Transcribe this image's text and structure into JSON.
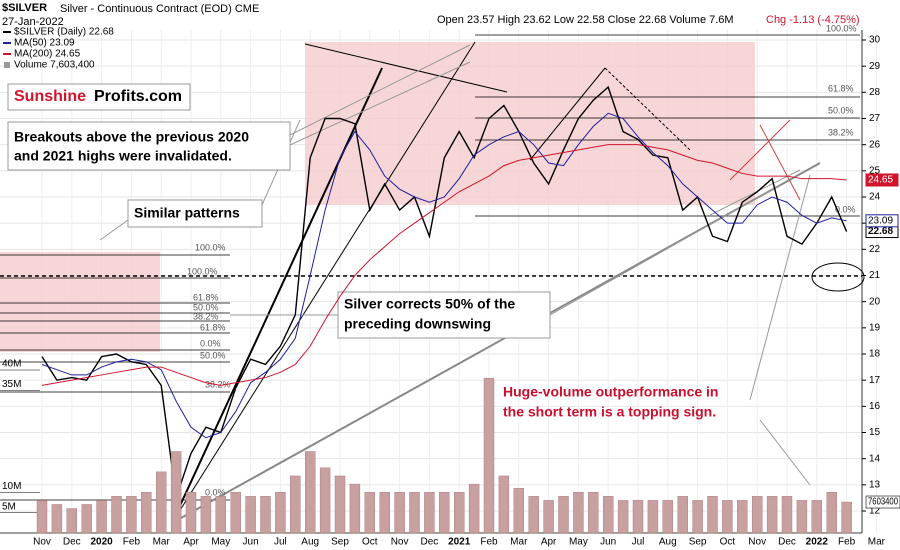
{
  "chart_data": {
    "type": "line",
    "title": "$SILVER",
    "subtitle": "Silver - Continuous Contract (EOD) CME",
    "date": "27-Jan-2022",
    "quote": "Open 23.57 High 23.62 Low 22.58 Close 22.68 Volume 7.6M",
    "change": "Chg -1.13 (-4.75%)",
    "categories": [
      "Nov",
      null,
      "Dec",
      null,
      "2020",
      null,
      "Feb",
      null,
      "Mar",
      null,
      "Apr",
      null,
      "May",
      null,
      "Jun",
      null,
      "Jul",
      null,
      "Aug",
      null,
      "Sep",
      null,
      "Oct",
      null,
      "Nov",
      null,
      "Dec",
      null,
      "2021",
      null,
      "Feb",
      null,
      "Mar",
      null,
      "Apr",
      null,
      "May",
      null,
      "Jun",
      null,
      "Jul",
      null,
      "Aug",
      null,
      "Sep",
      null,
      "Oct",
      null,
      "Nov",
      null,
      "Dec",
      null,
      "2022",
      null,
      "Feb",
      null,
      "Mar"
    ],
    "series": [
      {
        "name": "$SILVER (Daily) 22.68",
        "color": "#000000",
        "values": [
          17.9,
          17.0,
          17.1,
          17.0,
          17.9,
          18.0,
          17.7,
          17.6,
          16.8,
          12.5,
          14.2,
          15.2,
          15.0,
          16.7,
          17.8,
          17.6,
          18.3,
          19.5,
          25.5,
          27.0,
          27.0,
          26.8,
          23.5,
          24.5,
          23.5,
          24.0,
          22.5,
          25.5,
          26.5,
          25.5,
          27.0,
          27.5,
          26.5,
          25.3,
          24.5,
          25.8,
          27.0,
          27.7,
          28.2,
          26.5,
          26.2,
          25.6,
          25.5,
          23.5,
          24.0,
          22.5,
          22.3,
          23.8,
          24.2,
          24.7,
          22.5,
          22.2,
          23.0,
          24.0,
          22.68,
          null,
          null
        ]
      },
      {
        "name": "MA(50) 23.09",
        "color": "#1f1f9f",
        "values": [
          17.6,
          17.4,
          17.2,
          17.2,
          17.5,
          17.7,
          17.8,
          17.7,
          17.4,
          16.2,
          15.2,
          14.8,
          15.0,
          15.8,
          16.9,
          17.3,
          17.8,
          18.6,
          21.0,
          23.5,
          25.5,
          26.5,
          25.8,
          24.8,
          24.3,
          24.0,
          23.8,
          24.0,
          24.7,
          25.6,
          26.0,
          26.3,
          26.5,
          26.0,
          25.3,
          25.2,
          26.0,
          26.7,
          27.2,
          27.0,
          26.3,
          25.7,
          25.2,
          24.5,
          24.0,
          23.5,
          23.0,
          23.0,
          23.7,
          24.0,
          23.8,
          23.3,
          23.0,
          23.2,
          23.09,
          null,
          null
        ]
      },
      {
        "name": "MA(200) 24.65",
        "color": "#d0142c",
        "values": [
          16.8,
          16.9,
          17.0,
          17.1,
          17.2,
          17.3,
          17.4,
          17.5,
          17.5,
          17.3,
          17.1,
          16.9,
          16.8,
          16.9,
          17.0,
          17.1,
          17.3,
          17.6,
          18.3,
          19.3,
          20.2,
          21.0,
          21.6,
          22.1,
          22.6,
          23.0,
          23.4,
          23.8,
          24.2,
          24.5,
          24.8,
          25.2,
          25.4,
          25.5,
          25.6,
          25.7,
          25.8,
          25.9,
          26.0,
          26.0,
          26.0,
          25.9,
          25.8,
          25.6,
          25.4,
          25.3,
          25.1,
          24.9,
          24.8,
          24.8,
          24.8,
          24.7,
          24.7,
          24.7,
          24.65,
          null,
          null
        ]
      },
      {
        "name": "Volume 7,603,400",
        "color": "#c9a0a0",
        "type": "bar",
        "axis": "y2",
        "values": [
          8000000,
          7000000,
          6000000,
          7000000,
          8000000,
          9000000,
          9000000,
          10000000,
          15000000,
          20000000,
          10000000,
          9000000,
          9000000,
          10000000,
          9000000,
          9000000,
          10000000,
          14000000,
          20000000,
          16000000,
          14000000,
          12000000,
          10000000,
          10000000,
          10000000,
          10000000,
          10000000,
          10000000,
          10000000,
          12000000,
          38000000,
          14000000,
          11000000,
          9000000,
          8000000,
          9000000,
          10000000,
          10000000,
          9000000,
          8000000,
          8000000,
          8000000,
          8000000,
          9000000,
          8000000,
          9000000,
          8000000,
          8000000,
          9000000,
          9000000,
          9000000,
          8000000,
          8000000,
          10000000,
          7603400,
          null,
          null
        ]
      }
    ],
    "ylim": [
      12,
      30
    ],
    "yticks": [
      12,
      13,
      14,
      15,
      16,
      17,
      18,
      19,
      20,
      21,
      22,
      23,
      24,
      25,
      26,
      27,
      28,
      29,
      30
    ],
    "y2lim": [
      0,
      40000000
    ],
    "y2ticks": [
      {
        "value": 5000000,
        "label": "5M"
      },
      {
        "value": 10000000,
        "label": "10M"
      },
      {
        "value": 35000000,
        "label": "35M"
      },
      {
        "value": 40000000,
        "label": "40M"
      }
    ],
    "grid": true,
    "legend": "upper left",
    "annotations": {
      "brand": [
        "Sunshine",
        "Profits.com"
      ],
      "breakouts": [
        "Breakouts above the previous 2020",
        "and 2021 highs were invalidated."
      ],
      "patterns": "Similar patterns",
      "corrects": [
        "Silver corrects 50% of the",
        "preceding downswing"
      ],
      "volume_note": [
        "Huge-volume outperformance in",
        "the short term is a topping sign."
      ],
      "fib": [
        "100.0%",
        "100.0%",
        "61.8%",
        "50.0%",
        "38.2%",
        "61.8%",
        "0.0%",
        "50.0%",
        "38.2%",
        "0.0%",
        "100.0%",
        "61.8%",
        "50.0%",
        "38.2%",
        "0.0%"
      ]
    }
  }
}
